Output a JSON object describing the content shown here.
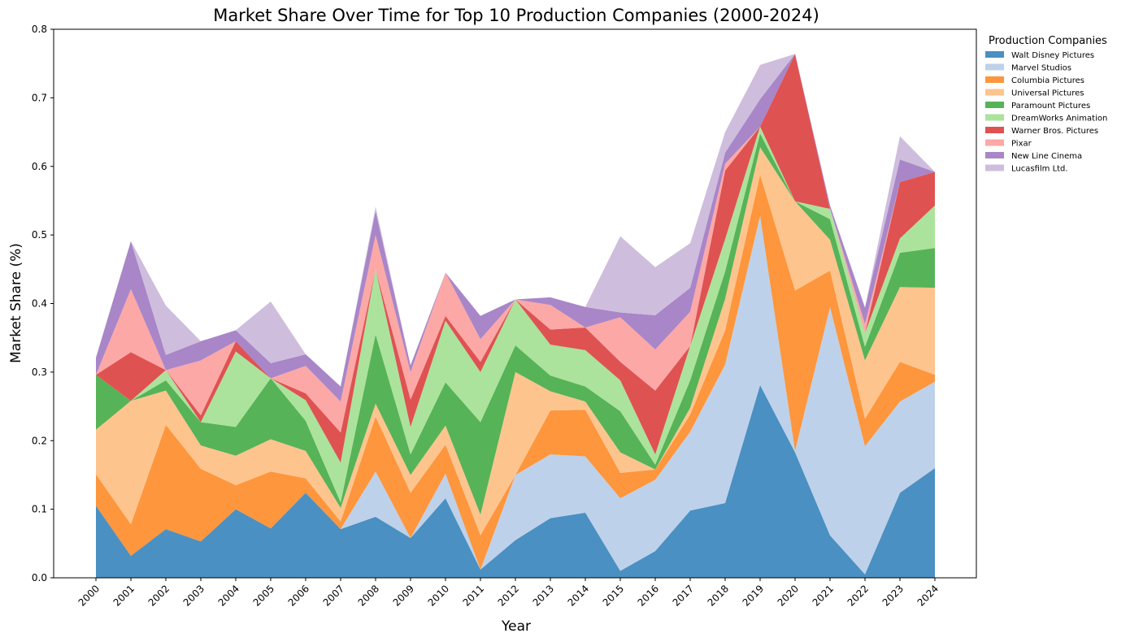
{
  "chart_data": {
    "type": "area",
    "stacked": true,
    "title": "Market Share Over Time for Top 10 Production Companies (2000-2024)",
    "xlabel": "Year",
    "ylabel": "Market Share (%)",
    "ylim": [
      0,
      0.8
    ],
    "yticks": [
      "0.0",
      "0.1",
      "0.2",
      "0.3",
      "0.4",
      "0.5",
      "0.6",
      "0.7",
      "0.8"
    ],
    "x": [
      "2000",
      "2001",
      "2002",
      "2003",
      "2004",
      "2005",
      "2006",
      "2007",
      "2008",
      "2009",
      "2010",
      "2011",
      "2012",
      "2013",
      "2014",
      "2015",
      "2016",
      "2017",
      "2018",
      "2019",
      "2020",
      "2021",
      "2022",
      "2023",
      "2024"
    ],
    "legend_title": "Production Companies",
    "legend_position": "outside-right-top",
    "grid": false,
    "series": [
      {
        "name": "Walt Disney Pictures",
        "color": "#4a90c2",
        "values": [
          0.105,
          0.032,
          0.071,
          0.053,
          0.1,
          0.072,
          0.124,
          0.071,
          0.089,
          0.058,
          0.116,
          0.012,
          0.055,
          0.087,
          0.095,
          0.01,
          0.039,
          0.098,
          0.109,
          0.281,
          0.183,
          0.062,
          0.005,
          0.124,
          0.16
        ]
      },
      {
        "name": "Marvel Studios",
        "color": "#bed1ea",
        "values": [
          0.0,
          0.0,
          0.0,
          0.0,
          0.0,
          0.0,
          0.0,
          0.0,
          0.066,
          0.0,
          0.036,
          0.0,
          0.095,
          0.093,
          0.082,
          0.106,
          0.104,
          0.115,
          0.202,
          0.247,
          0.002,
          0.333,
          0.187,
          0.133,
          0.126
        ]
      },
      {
        "name": "Columbia Pictures",
        "color": "#fd963c",
        "values": [
          0.046,
          0.046,
          0.152,
          0.106,
          0.035,
          0.083,
          0.021,
          0.011,
          0.08,
          0.066,
          0.042,
          0.05,
          0.0,
          0.064,
          0.068,
          0.037,
          0.015,
          0.025,
          0.05,
          0.06,
          0.234,
          0.053,
          0.04,
          0.058,
          0.01
        ]
      },
      {
        "name": "Universal Pictures",
        "color": "#fec48e",
        "values": [
          0.065,
          0.18,
          0.05,
          0.034,
          0.043,
          0.047,
          0.04,
          0.02,
          0.019,
          0.026,
          0.028,
          0.03,
          0.15,
          0.028,
          0.012,
          0.03,
          0.0,
          0.01,
          0.046,
          0.04,
          0.13,
          0.045,
          0.085,
          0.109,
          0.127
        ]
      },
      {
        "name": "Paramount Pictures",
        "color": "#57b357",
        "values": [
          0.08,
          0.0,
          0.015,
          0.034,
          0.042,
          0.089,
          0.044,
          0.008,
          0.101,
          0.03,
          0.063,
          0.135,
          0.039,
          0.023,
          0.022,
          0.06,
          0.007,
          0.04,
          0.04,
          0.02,
          0.0,
          0.03,
          0.02,
          0.05,
          0.058
        ]
      },
      {
        "name": "DreamWorks Animation",
        "color": "#abe39c",
        "values": [
          0.0,
          0.0,
          0.015,
          0.0,
          0.11,
          0.0,
          0.03,
          0.058,
          0.095,
          0.04,
          0.09,
          0.073,
          0.067,
          0.045,
          0.053,
          0.045,
          0.015,
          0.05,
          0.047,
          0.01,
          0.0,
          0.015,
          0.02,
          0.021,
          0.062
        ]
      },
      {
        "name": "Warner Bros. Pictures",
        "color": "#df5252",
        "values": [
          0.0,
          0.071,
          0.0,
          0.01,
          0.015,
          0.0,
          0.01,
          0.044,
          0.0,
          0.04,
          0.007,
          0.015,
          0.0,
          0.022,
          0.033,
          0.027,
          0.093,
          0.0,
          0.1,
          0.0,
          0.215,
          0.0,
          0.0,
          0.082,
          0.049
        ]
      },
      {
        "name": "Pixar",
        "color": "#fca8a6",
        "values": [
          0.0,
          0.092,
          0.0,
          0.08,
          0.0,
          0.0,
          0.04,
          0.045,
          0.05,
          0.04,
          0.063,
          0.033,
          0.0,
          0.036,
          0.0,
          0.065,
          0.06,
          0.05,
          0.01,
          0.0,
          0.0,
          0.0,
          0.013,
          0.0,
          0.0
        ]
      },
      {
        "name": "New Line Cinema",
        "color": "#a886c8",
        "values": [
          0.025,
          0.07,
          0.022,
          0.028,
          0.016,
          0.022,
          0.017,
          0.022,
          0.035,
          0.01,
          0.0,
          0.034,
          0.0,
          0.011,
          0.03,
          0.007,
          0.05,
          0.035,
          0.016,
          0.04,
          0.0,
          0.005,
          0.024,
          0.033,
          0.0
        ]
      },
      {
        "name": "Lucasfilm Ltd.",
        "color": "#cfbddd",
        "values": [
          0.0,
          0.0,
          0.072,
          0.0,
          0.0,
          0.09,
          0.0,
          0.0,
          0.006,
          0.0,
          0.0,
          0.0,
          0.0,
          0.0,
          0.0,
          0.111,
          0.07,
          0.065,
          0.03,
          0.05,
          0.0,
          0.0,
          0.0,
          0.034,
          0.0
        ]
      }
    ]
  }
}
